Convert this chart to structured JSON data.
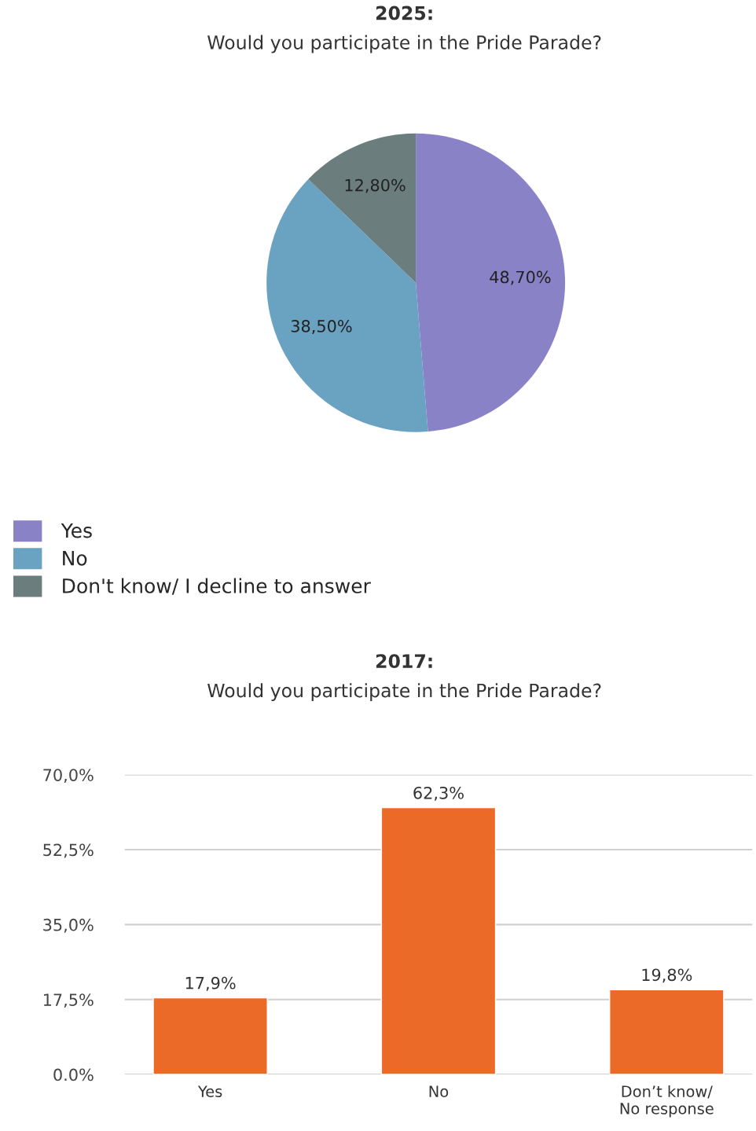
{
  "chart_data": [
    {
      "type": "pie",
      "title": "2025:",
      "subtitle": "Would you participate in the Pride Parade?",
      "categories": [
        "Yes",
        "No",
        "Don't know/ I decline to answer"
      ],
      "values": [
        48.7,
        38.5,
        12.8
      ],
      "colors": [
        "#8a82c6",
        "#6aa3c1",
        "#6b7d7d"
      ],
      "value_labels": [
        "48,70%",
        "38,50%",
        "12,80%"
      ],
      "legend": "bottom left"
    },
    {
      "type": "bar",
      "title": "2017:",
      "subtitle": "Would you participate in the Pride Parade?",
      "categories": [
        "Yes",
        "No",
        "Don’t know/\nNo response"
      ],
      "values": [
        17.9,
        62.3,
        19.8
      ],
      "color": "#ec6a28",
      "value_labels": [
        "17,9%",
        "62,3%",
        "19,8%"
      ],
      "ylim": [
        0,
        70
      ],
      "yticks": [
        {
          "value": 0,
          "label": "0.0%"
        },
        {
          "value": 17.5,
          "label": "17,5%"
        },
        {
          "value": 35,
          "label": "35,0%"
        },
        {
          "value": 52.5,
          "label": "52,5%"
        },
        {
          "value": 70,
          "label": "70,0%"
        }
      ],
      "grid": "y"
    }
  ]
}
